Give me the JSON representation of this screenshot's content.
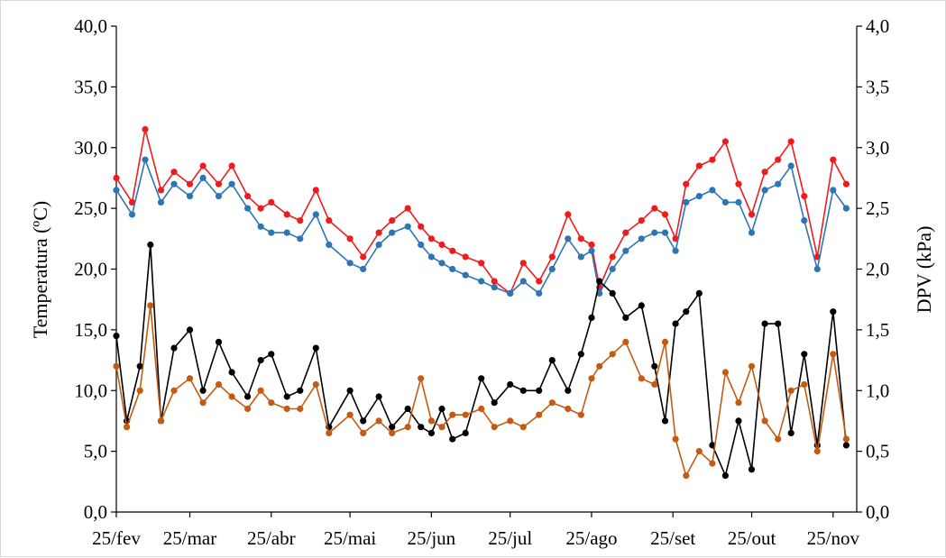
{
  "chart_data": {
    "type": "line",
    "title": "",
    "xlabel": "",
    "ylabel": "Temperatura (ºC)",
    "y2label": "DPV (kPa)",
    "ylim": [
      0,
      40
    ],
    "y2lim": [
      0,
      4
    ],
    "yticks": [
      "0,0",
      "5,0",
      "10,0",
      "15,0",
      "20,0",
      "25,0",
      "30,0",
      "35,0",
      "40,0"
    ],
    "y2ticks": [
      "0,0",
      "0,5",
      "1,0",
      "1,5",
      "2,0",
      "2,5",
      "3,0",
      "3,5",
      "4,0"
    ],
    "xticks": [
      "25/fev",
      "25/mar",
      "25/abr",
      "25/mai",
      "25/jun",
      "25/jul",
      "25/ago",
      "25/set",
      "25/out",
      "25/nov"
    ],
    "grid": false,
    "legend": "none",
    "series": [
      {
        "color": "#ee1c1c",
        "axis": "left",
        "x": [
          "2023-02-25",
          "2023-03-03",
          "2023-03-08",
          "2023-03-14",
          "2023-03-19",
          "2023-03-25",
          "2023-03-30",
          "2023-04-05",
          "2023-04-10",
          "2023-04-16",
          "2023-04-21",
          "2023-04-25",
          "2023-05-01",
          "2023-05-06",
          "2023-05-12",
          "2023-05-17",
          "2023-05-25",
          "2023-05-30",
          "2023-06-05",
          "2023-06-10",
          "2023-06-16",
          "2023-06-21",
          "2023-06-25",
          "2023-06-29",
          "2023-07-03",
          "2023-07-08",
          "2023-07-14",
          "2023-07-19",
          "2023-07-25",
          "2023-07-30",
          "2023-08-05",
          "2023-08-10",
          "2023-08-16",
          "2023-08-21",
          "2023-08-25",
          "2023-08-28",
          "2023-09-02",
          "2023-09-07",
          "2023-09-13",
          "2023-09-18",
          "2023-09-22",
          "2023-09-26",
          "2023-09-30",
          "2023-10-05",
          "2023-10-10",
          "2023-10-15",
          "2023-10-20",
          "2023-10-25",
          "2023-10-30",
          "2023-11-04",
          "2023-11-09",
          "2023-11-14",
          "2023-11-19",
          "2023-11-25",
          "2023-11-30"
        ],
        "y": [
          27.5,
          25.5,
          31.5,
          26.5,
          28.0,
          27.0,
          28.5,
          27.0,
          28.5,
          26.0,
          25.0,
          25.5,
          24.5,
          24.0,
          26.5,
          24.0,
          22.5,
          21.0,
          23.0,
          24.0,
          25.0,
          23.5,
          22.5,
          22.0,
          21.5,
          21.0,
          20.5,
          19.0,
          18.0,
          20.5,
          19.0,
          21.0,
          24.5,
          22.5,
          22.0,
          18.5,
          21.0,
          23.0,
          24.0,
          25.0,
          24.5,
          22.5,
          27.0,
          28.5,
          29.0,
          30.5,
          27.0,
          24.5,
          28.0,
          29.0,
          30.5,
          26.0,
          21.0,
          29.0,
          27.0
        ]
      },
      {
        "color": "#2e75b6",
        "axis": "left",
        "x": [
          "2023-02-25",
          "2023-03-03",
          "2023-03-08",
          "2023-03-14",
          "2023-03-19",
          "2023-03-25",
          "2023-03-30",
          "2023-04-05",
          "2023-04-10",
          "2023-04-16",
          "2023-04-21",
          "2023-04-25",
          "2023-05-01",
          "2023-05-06",
          "2023-05-12",
          "2023-05-17",
          "2023-05-25",
          "2023-05-30",
          "2023-06-05",
          "2023-06-10",
          "2023-06-16",
          "2023-06-21",
          "2023-06-25",
          "2023-06-29",
          "2023-07-03",
          "2023-07-08",
          "2023-07-14",
          "2023-07-19",
          "2023-07-25",
          "2023-07-30",
          "2023-08-05",
          "2023-08-10",
          "2023-08-16",
          "2023-08-21",
          "2023-08-25",
          "2023-08-28",
          "2023-09-02",
          "2023-09-07",
          "2023-09-13",
          "2023-09-18",
          "2023-09-22",
          "2023-09-26",
          "2023-09-30",
          "2023-10-05",
          "2023-10-10",
          "2023-10-15",
          "2023-10-20",
          "2023-10-25",
          "2023-10-30",
          "2023-11-04",
          "2023-11-09",
          "2023-11-14",
          "2023-11-19",
          "2023-11-25",
          "2023-11-30"
        ],
        "y": [
          26.5,
          24.5,
          29.0,
          25.5,
          27.0,
          26.0,
          27.5,
          26.0,
          27.0,
          25.0,
          23.5,
          23.0,
          23.0,
          22.5,
          24.5,
          22.0,
          20.5,
          20.0,
          22.0,
          23.0,
          23.5,
          22.0,
          21.0,
          20.5,
          20.0,
          19.5,
          19.0,
          18.5,
          18.0,
          19.0,
          18.0,
          20.0,
          22.5,
          21.0,
          21.5,
          18.0,
          20.0,
          21.5,
          22.5,
          23.0,
          23.0,
          21.5,
          25.5,
          26.0,
          26.5,
          25.5,
          25.5,
          23.0,
          26.5,
          27.0,
          28.5,
          24.0,
          20.0,
          26.5,
          25.0
        ]
      },
      {
        "color": "#000000",
        "axis": "right",
        "x": [
          "2023-02-25",
          "2023-03-01",
          "2023-03-06",
          "2023-03-10",
          "2023-03-14",
          "2023-03-19",
          "2023-03-25",
          "2023-03-30",
          "2023-04-05",
          "2023-04-10",
          "2023-04-16",
          "2023-04-21",
          "2023-04-25",
          "2023-05-01",
          "2023-05-06",
          "2023-05-12",
          "2023-05-17",
          "2023-05-25",
          "2023-05-30",
          "2023-06-05",
          "2023-06-10",
          "2023-06-16",
          "2023-06-21",
          "2023-06-25",
          "2023-06-29",
          "2023-07-03",
          "2023-07-08",
          "2023-07-14",
          "2023-07-19",
          "2023-07-25",
          "2023-07-30",
          "2023-08-05",
          "2023-08-10",
          "2023-08-16",
          "2023-08-21",
          "2023-08-25",
          "2023-08-28",
          "2023-09-02",
          "2023-09-07",
          "2023-09-13",
          "2023-09-18",
          "2023-09-22",
          "2023-09-26",
          "2023-09-30",
          "2023-10-05",
          "2023-10-10",
          "2023-10-15",
          "2023-10-20",
          "2023-10-25",
          "2023-10-30",
          "2023-11-04",
          "2023-11-09",
          "2023-11-14",
          "2023-11-19",
          "2023-11-25",
          "2023-11-30"
        ],
        "y": [
          1.45,
          0.75,
          1.2,
          2.2,
          0.75,
          1.35,
          1.5,
          1.0,
          1.4,
          1.15,
          0.95,
          1.25,
          1.3,
          0.95,
          1.0,
          1.35,
          0.7,
          1.0,
          0.75,
          0.95,
          0.7,
          0.85,
          0.7,
          0.65,
          0.85,
          0.6,
          0.65,
          1.1,
          0.9,
          1.05,
          1.0,
          1.0,
          1.25,
          1.0,
          1.3,
          1.6,
          1.9,
          1.8,
          1.6,
          1.7,
          1.2,
          0.75,
          1.55,
          1.65,
          1.8,
          0.55,
          0.3,
          0.75,
          0.35,
          1.55,
          1.55,
          0.65,
          1.3,
          0.55,
          1.65,
          0.55
        ]
      },
      {
        "color": "#c55a11",
        "axis": "right",
        "x": [
          "2023-02-25",
          "2023-03-01",
          "2023-03-06",
          "2023-03-10",
          "2023-03-14",
          "2023-03-19",
          "2023-03-25",
          "2023-03-30",
          "2023-04-05",
          "2023-04-10",
          "2023-04-16",
          "2023-04-21",
          "2023-04-25",
          "2023-05-01",
          "2023-05-06",
          "2023-05-12",
          "2023-05-17",
          "2023-05-25",
          "2023-05-30",
          "2023-06-05",
          "2023-06-10",
          "2023-06-16",
          "2023-06-21",
          "2023-06-25",
          "2023-06-29",
          "2023-07-03",
          "2023-07-08",
          "2023-07-14",
          "2023-07-19",
          "2023-07-25",
          "2023-07-30",
          "2023-08-05",
          "2023-08-10",
          "2023-08-16",
          "2023-08-21",
          "2023-08-25",
          "2023-08-28",
          "2023-09-02",
          "2023-09-07",
          "2023-09-13",
          "2023-09-18",
          "2023-09-22",
          "2023-09-26",
          "2023-09-30",
          "2023-10-05",
          "2023-10-10",
          "2023-10-15",
          "2023-10-20",
          "2023-10-25",
          "2023-10-30",
          "2023-11-04",
          "2023-11-09",
          "2023-11-14",
          "2023-11-19",
          "2023-11-25",
          "2023-11-30"
        ],
        "y": [
          1.2,
          0.7,
          1.0,
          1.7,
          0.75,
          1.0,
          1.1,
          0.9,
          1.05,
          0.95,
          0.85,
          1.0,
          0.9,
          0.85,
          0.85,
          1.05,
          0.65,
          0.8,
          0.65,
          0.75,
          0.65,
          0.7,
          1.1,
          0.75,
          0.7,
          0.8,
          0.8,
          0.85,
          0.7,
          0.75,
          0.7,
          0.8,
          0.9,
          0.85,
          0.8,
          1.1,
          1.2,
          1.3,
          1.4,
          1.1,
          1.05,
          1.4,
          0.6,
          0.3,
          0.5,
          0.4,
          1.15,
          0.9,
          1.2,
          0.75,
          0.6,
          1.0,
          1.05,
          0.5,
          1.3,
          0.6
        ]
      }
    ]
  }
}
